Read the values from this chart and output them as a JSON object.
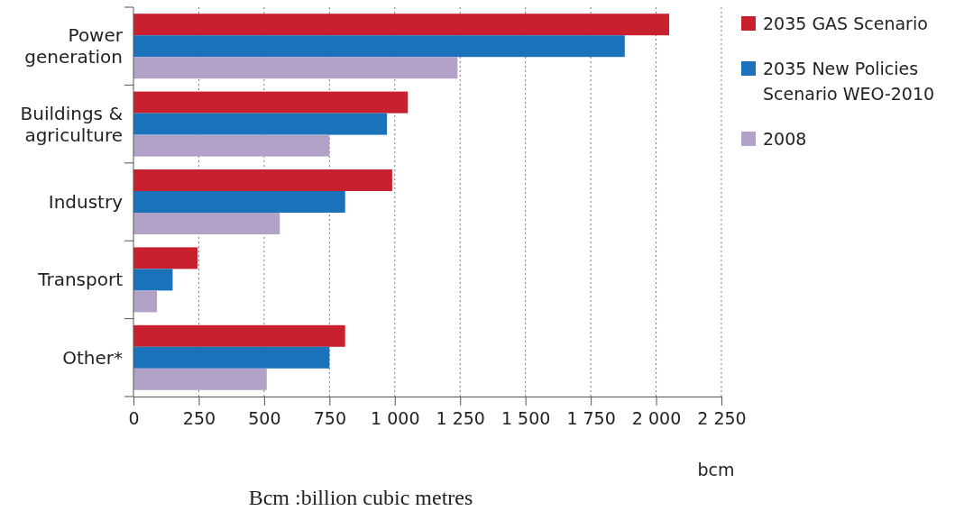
{
  "chart_data": {
    "type": "bar",
    "orientation": "horizontal",
    "categories": [
      "Power generation",
      "Buildings & agriculture",
      "Industry",
      "Transport",
      "Other*"
    ],
    "series": [
      {
        "name": "2035 GAS Scenario",
        "color": "#c8202f",
        "values": [
          2050,
          1050,
          990,
          245,
          810
        ]
      },
      {
        "name": "2035 New Policies Scenario WEO-2010",
        "color": "#1a72bb",
        "values": [
          1880,
          970,
          810,
          150,
          750
        ]
      },
      {
        "name": "2008",
        "color": "#b3a2c8",
        "values": [
          1240,
          750,
          560,
          90,
          510
        ]
      }
    ],
    "xlim": [
      0,
      2250
    ],
    "xticks": [
      0,
      250,
      500,
      750,
      {
        "value": 1000,
        "label": "1 000"
      },
      {
        "value": 1250,
        "label": "1 250"
      },
      {
        "value": 1500,
        "label": "1 500"
      },
      {
        "value": 1750,
        "label": "1 750"
      },
      {
        "value": 2000,
        "label": "2 000"
      },
      {
        "value": 2250,
        "label": "2 250"
      }
    ],
    "xlabel": "bcm",
    "grid": "x",
    "legend": "right",
    "annotations": [
      "Bcm :billion cubic metres"
    ]
  }
}
